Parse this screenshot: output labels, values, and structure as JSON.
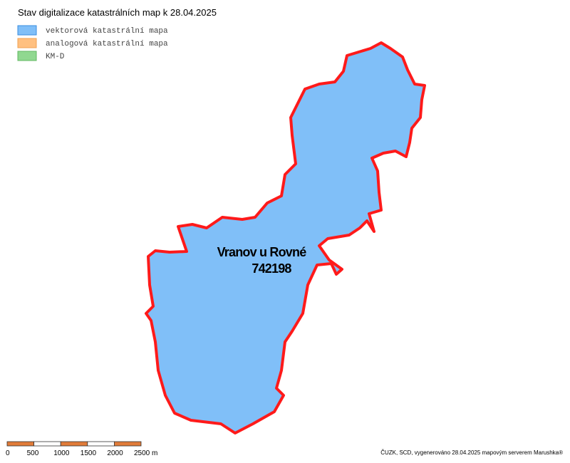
{
  "header": {
    "title": "Stav digitalizace katastrálních map k 28.04.2025"
  },
  "legend": [
    {
      "label": "vektorová katastrální mapa",
      "color": "#80bff8",
      "border": "#3a8ee0"
    },
    {
      "label": "analogová katastrální mapa",
      "color": "#ffc080",
      "border": "#f0a050"
    },
    {
      "label": "KM-D",
      "color": "#90d890",
      "border": "#60b860"
    }
  ],
  "map": {
    "label": {
      "name": "Vranov u Rovné",
      "code": "742198"
    }
  },
  "scale_bar": {
    "labels": [
      "0",
      "500",
      "1000",
      "1500",
      "2000",
      "2500 m"
    ]
  },
  "footer": "ČUZK, SCD, vygenerováno 28.04.2025 mapovým serverem Marushka®"
}
